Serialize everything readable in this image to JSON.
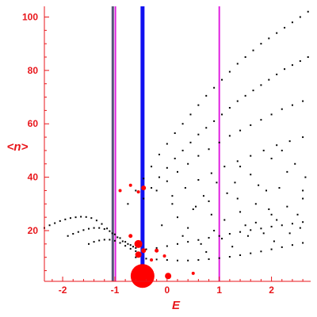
{
  "chart_data": {
    "type": "scatter",
    "xlabel": "E",
    "ylabel": "<n>",
    "xlim": [
      -2.35,
      2.75
    ],
    "ylim": [
      1,
      104
    ],
    "x_ticks": [
      -2,
      -1,
      0,
      1,
      2
    ],
    "y_ticks": [
      20,
      40,
      60,
      80,
      100
    ],
    "x_tick_labels": [
      "-2",
      "-1",
      "0",
      "1",
      "2"
    ],
    "y_tick_labels": [
      "20",
      "40",
      "60",
      "80",
      "100"
    ],
    "grid": false,
    "legend": "none",
    "vertical_lines": [
      {
        "x": -1.04,
        "color": "#555577",
        "width": 3
      },
      {
        "x": -0.99,
        "color": "#e020e0",
        "width": 2
      },
      {
        "x": -0.47,
        "color": "#1010f0",
        "width": 5
      },
      {
        "x": 1.0,
        "color": "#e020e0",
        "width": 2
      }
    ],
    "red_markers": [
      {
        "x": -0.47,
        "y": 3,
        "size": 15
      },
      {
        "x": 0.02,
        "y": 3,
        "size": 4
      },
      {
        "x": -0.55,
        "y": 15,
        "size": 5
      },
      {
        "x": -0.55,
        "y": 11,
        "size": 4
      },
      {
        "x": -0.45,
        "y": 36,
        "size": 3
      },
      {
        "x": -0.45,
        "y": 12.5,
        "size": 3
      },
      {
        "x": -0.7,
        "y": 18,
        "size": 2.5
      },
      {
        "x": -0.2,
        "y": 12.5,
        "size": 2.5
      },
      {
        "x": -0.05,
        "y": 10.5,
        "size": 2
      },
      {
        "x": -0.3,
        "y": 9,
        "size": 2
      },
      {
        "x": 0.5,
        "y": 4,
        "size": 2
      },
      {
        "x": -0.7,
        "y": 37,
        "size": 2
      },
      {
        "x": -0.9,
        "y": 35,
        "size": 2
      },
      {
        "x": -0.55,
        "y": 34.5,
        "size": 2
      }
    ],
    "series": [
      {
        "x": [
          -2.35,
          -2.25,
          -2.15,
          -2.05,
          -1.95,
          -1.85,
          -1.75,
          -1.65,
          -1.55,
          -1.45,
          -1.35,
          -1.25,
          -1.15,
          -1.05,
          -0.95,
          -0.85,
          -0.75,
          -0.65
        ],
        "y": [
          21,
          22,
          22.8,
          23.6,
          24.2,
          24.7,
          25,
          25.2,
          25.1,
          24.7,
          23.8,
          22.5,
          20.8,
          19,
          17.5,
          16,
          15,
          14
        ]
      },
      {
        "x": [
          -1.9,
          -1.8,
          -1.7,
          -1.6,
          -1.5,
          -1.4,
          -1.3,
          -1.2,
          -1.1,
          -1.0,
          -0.9,
          -0.8,
          -0.7,
          -0.6
        ],
        "y": [
          18,
          18.8,
          19.5,
          20.2,
          20.7,
          21,
          21,
          20.6,
          19.8,
          18.6,
          17.2,
          15.8,
          14.6,
          13.5
        ]
      },
      {
        "x": [
          -1.5,
          -1.4,
          -1.3,
          -1.2,
          -1.1,
          -1.0,
          -0.9,
          -0.8,
          -0.7,
          -0.6
        ],
        "y": [
          15,
          15.8,
          16.3,
          16.6,
          16.6,
          16.2,
          15.4,
          14.3,
          13.2,
          12.3
        ]
      },
      {
        "x": [
          -0.75,
          -0.6,
          -0.45,
          -0.3,
          -0.15,
          0.0,
          0.15,
          0.3,
          0.45,
          0.6,
          0.75,
          0.9,
          1.05,
          1.2,
          1.35,
          1.5,
          1.65,
          1.8,
          1.95,
          2.1,
          2.25,
          2.4,
          2.55,
          2.7
        ],
        "y": [
          30,
          35,
          39.5,
          44,
          48.5,
          52.5,
          56.5,
          60,
          63.5,
          67,
          70.5,
          73.5,
          76.5,
          79.5,
          82.5,
          85,
          87.5,
          90,
          92,
          94,
          96,
          98,
          100,
          102
        ]
      },
      {
        "x": [
          -0.45,
          -0.3,
          -0.15,
          0.0,
          0.15,
          0.3,
          0.45,
          0.6,
          0.75,
          0.9,
          1.05,
          1.2,
          1.35,
          1.5,
          1.65,
          1.8,
          1.95,
          2.1,
          2.25,
          2.4,
          2.55,
          2.7
        ],
        "y": [
          32,
          36,
          40,
          43.5,
          47,
          50,
          53,
          56,
          58.5,
          61,
          63.5,
          66,
          68.5,
          70.5,
          72.5,
          74.5,
          76.5,
          78.5,
          80.5,
          82,
          83.5,
          85
        ]
      },
      {
        "x": [
          -0.2,
          0.0,
          0.2,
          0.4,
          0.6,
          0.8,
          1.0,
          1.2,
          1.4,
          1.6,
          1.8,
          2.0,
          2.2,
          2.4,
          2.6
        ],
        "y": [
          35,
          38.5,
          42,
          45,
          48,
          50.5,
          53,
          55.5,
          57.5,
          59.5,
          61.5,
          63.5,
          65.5,
          67,
          68.5
        ]
      },
      {
        "x": [
          0.1,
          0.35,
          0.6,
          0.85,
          1.1,
          1.35,
          1.6,
          1.85,
          2.1,
          2.35,
          2.6
        ],
        "y": [
          33,
          36,
          39,
          41.5,
          44,
          46,
          48,
          50,
          52,
          53.5,
          55
        ]
      },
      {
        "x": [
          -0.6,
          -0.4,
          -0.2,
          0.0,
          0.2,
          0.4,
          0.6,
          0.8,
          1.0,
          1.2,
          1.4,
          1.6,
          1.8,
          2.0,
          2.2,
          2.4,
          2.6
        ],
        "y": [
          10,
          9.5,
          9.2,
          9,
          8.8,
          8.8,
          9,
          9.3,
          9.7,
          10.2,
          10.8,
          11.5,
          12.2,
          13,
          13.8,
          14.6,
          15.4
        ]
      },
      {
        "x": [
          -0.4,
          -0.2,
          0.0,
          0.2,
          0.4,
          0.6,
          0.8,
          1.0,
          1.2,
          1.4,
          1.6,
          1.8,
          2.0,
          2.2,
          2.4,
          2.6
        ],
        "y": [
          13,
          13.5,
          14.2,
          15,
          15.8,
          16.5,
          17.3,
          18,
          18.8,
          19.5,
          20.2,
          20.8,
          21.5,
          22,
          22.6,
          23.2
        ]
      },
      {
        "x": [
          -0.1,
          0.2,
          0.5,
          0.8,
          1.1,
          1.4,
          1.7,
          2.0,
          2.3,
          2.6,
          0.3,
          0.9,
          1.5,
          2.1,
          2.5,
          1.9,
          1.3,
          0.7,
          0.1,
          2.65,
          2.3,
          1.75,
          1.15,
          0.55,
          2.45,
          1.6,
          0.95,
          2.0,
          1.4,
          2.2,
          0.4,
          1.05,
          1.85,
          2.55,
          0.75,
          1.25,
          2.05,
          1.55,
          2.35,
          0.65,
          1.95,
          2.6,
          1.35,
          2.15,
          0.85,
          1.7
        ],
        "y": [
          22,
          25,
          28,
          31,
          24,
          27,
          30,
          26,
          29,
          32,
          18,
          20,
          22,
          24,
          26,
          35,
          38,
          33,
          30,
          40,
          42,
          37,
          34,
          29,
          45,
          41,
          38,
          47,
          44,
          50,
          21,
          17,
          19,
          21,
          12,
          14,
          16,
          18,
          19,
          15,
          28,
          35,
          32,
          36,
          26,
          23
        ]
      }
    ]
  }
}
